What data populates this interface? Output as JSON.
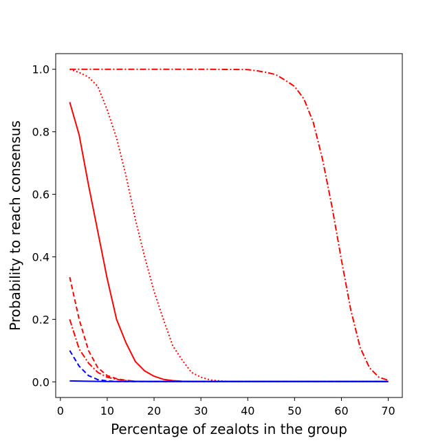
{
  "chart_data": {
    "type": "line",
    "title": "",
    "xlabel": "Percentage of zealots in the group",
    "ylabel": "Probability to reach consensus",
    "xlim": [
      -1,
      73
    ],
    "ylim": [
      -0.05,
      1.05
    ],
    "grid": false,
    "xticks": [
      0,
      10,
      20,
      30,
      40,
      50,
      60,
      70
    ],
    "yticks": [
      0.0,
      0.2,
      0.4,
      0.6,
      0.8,
      1.0
    ],
    "ytick_labels": [
      "0.0",
      "0.2",
      "0.4",
      "0.6",
      "0.8",
      "1.0"
    ],
    "series": [
      {
        "color": "#ff0000",
        "linestyle": "solid",
        "x": [
          2,
          4,
          6,
          8,
          10,
          12,
          14,
          16,
          18,
          20,
          22,
          24,
          26,
          30,
          40,
          50,
          60,
          70
        ],
        "y": [
          0.895,
          0.79,
          0.63,
          0.48,
          0.33,
          0.2,
          0.125,
          0.065,
          0.035,
          0.018,
          0.008,
          0.004,
          0.002,
          0.001,
          0.001,
          0.001,
          0.001,
          0.001
        ]
      },
      {
        "color": "#ff0000",
        "linestyle": "dotted",
        "x": [
          2,
          4,
          6,
          8,
          10,
          12,
          14,
          16,
          18,
          20,
          22,
          24,
          26,
          28,
          30,
          32,
          34,
          36,
          40,
          50,
          60,
          70
        ],
        "y": [
          1.0,
          0.99,
          0.975,
          0.945,
          0.87,
          0.78,
          0.66,
          0.52,
          0.4,
          0.29,
          0.2,
          0.115,
          0.07,
          0.03,
          0.015,
          0.006,
          0.003,
          0.001,
          0.001,
          0.001,
          0.001,
          0.001
        ]
      },
      {
        "color": "#ff0000",
        "linestyle": "dashdot",
        "x": [
          2,
          4,
          6,
          8,
          10,
          20,
          30,
          40,
          42,
          44,
          46,
          48,
          50,
          52,
          54,
          56,
          58,
          60,
          62,
          64,
          66,
          68,
          70
        ],
        "y": [
          1.0,
          1.0,
          1.0,
          1.0,
          1.0,
          1.0,
          1.0,
          0.999,
          0.995,
          0.99,
          0.983,
          0.965,
          0.945,
          0.905,
          0.83,
          0.71,
          0.56,
          0.39,
          0.23,
          0.11,
          0.045,
          0.015,
          0.005
        ]
      },
      {
        "color": "#ff0000",
        "linestyle": "dashed",
        "x": [
          2,
          4,
          6,
          8,
          10,
          12,
          14,
          16,
          20,
          30,
          40,
          50,
          60,
          70
        ],
        "y": [
          0.335,
          0.2,
          0.1,
          0.045,
          0.02,
          0.01,
          0.005,
          0.002,
          0.001,
          0.001,
          0.001,
          0.001,
          0.001,
          0.001
        ]
      },
      {
        "color": "#ff0000",
        "linestyle": "dashdot",
        "x": [
          2,
          4,
          6,
          8,
          10,
          12,
          14,
          16,
          20,
          30,
          40,
          50,
          60,
          70
        ],
        "y": [
          0.2,
          0.105,
          0.06,
          0.03,
          0.015,
          0.008,
          0.004,
          0.002,
          0.001,
          0.001,
          0.001,
          0.001,
          0.001,
          0.001
        ]
      },
      {
        "color": "#0000ff",
        "linestyle": "dashed",
        "x": [
          2,
          4,
          6,
          8,
          10,
          12,
          14,
          20,
          30,
          40,
          50,
          60,
          70
        ],
        "y": [
          0.1,
          0.05,
          0.02,
          0.007,
          0.003,
          0.001,
          0.001,
          0.001,
          0.001,
          0.001,
          0.001,
          0.001,
          0.001
        ]
      },
      {
        "color": "#0000ff",
        "linestyle": "solid",
        "x": [
          2,
          10,
          20,
          30,
          40,
          50,
          60,
          70
        ],
        "y": [
          0.003,
          0.001,
          0.001,
          0.001,
          0.001,
          0.001,
          0.001,
          0.001
        ]
      }
    ]
  }
}
